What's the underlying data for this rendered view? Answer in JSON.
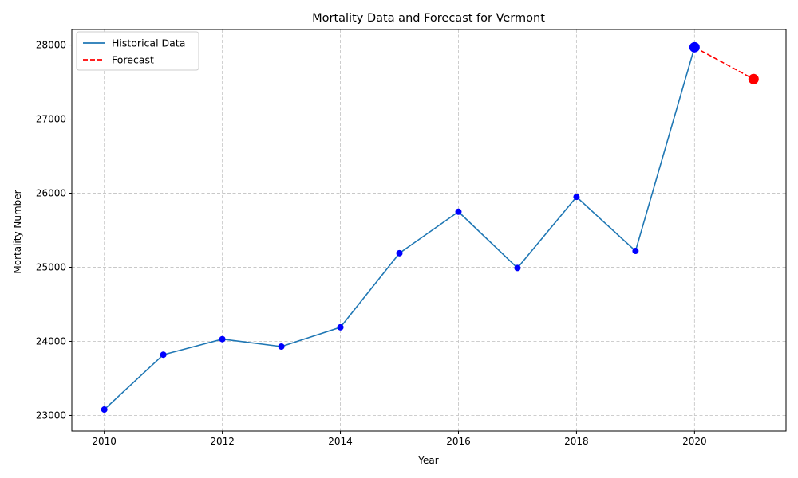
{
  "chart_data": {
    "type": "line",
    "title": "Mortality Data and Forecast for Vermont",
    "xlabel": "Year",
    "ylabel": "Mortality Number",
    "xlim": [
      2009.45,
      2021.55
    ],
    "ylim": [
      22790,
      28210
    ],
    "x_ticks": [
      2010,
      2012,
      2014,
      2016,
      2018,
      2020
    ],
    "y_ticks": [
      23000,
      24000,
      25000,
      26000,
      27000,
      28000
    ],
    "grid": true,
    "legend_position": "top-left",
    "series": [
      {
        "name": "Historical Data",
        "style": "solid",
        "color": "#1f77b4",
        "marker_color": "#0000ff",
        "x": [
          2010,
          2011,
          2012,
          2013,
          2014,
          2015,
          2016,
          2017,
          2018,
          2019,
          2020
        ],
        "y": [
          23080,
          23820,
          24030,
          23930,
          24190,
          25190,
          25750,
          24990,
          25950,
          25220,
          27970
        ]
      },
      {
        "name": "Forecast",
        "style": "dashed",
        "color": "#ff0000",
        "marker_color": "#ff0000",
        "x": [
          2020,
          2021
        ],
        "y": [
          27970,
          27540
        ]
      }
    ],
    "highlighted_points": [
      {
        "x": 2020,
        "y": 27970,
        "color": "#0000ff"
      },
      {
        "x": 2021,
        "y": 27540,
        "color": "#ff0000"
      }
    ]
  }
}
